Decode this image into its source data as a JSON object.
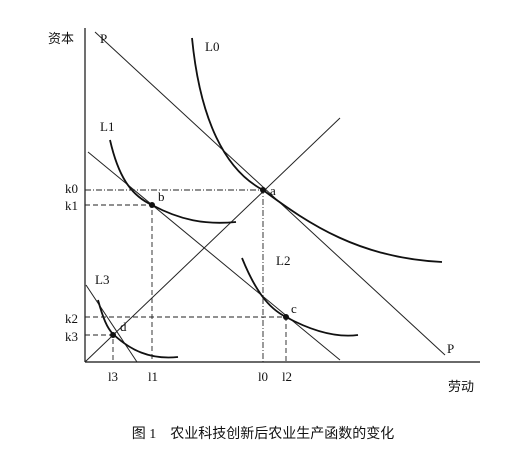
{
  "axes": {
    "y_label": "资本",
    "x_label": "劳动"
  },
  "lines": {
    "p_top": "P",
    "p_bottom": "P"
  },
  "curves": [
    "L0",
    "L1",
    "L2",
    "L3"
  ],
  "points": [
    "a",
    "b",
    "c",
    "d"
  ],
  "y_ticks": [
    "k0",
    "k1",
    "k2",
    "k3"
  ],
  "x_ticks": [
    "l3",
    "l1",
    "l0",
    "l2"
  ],
  "caption": "图 1　农业科技创新后农业生产函数的变化"
}
